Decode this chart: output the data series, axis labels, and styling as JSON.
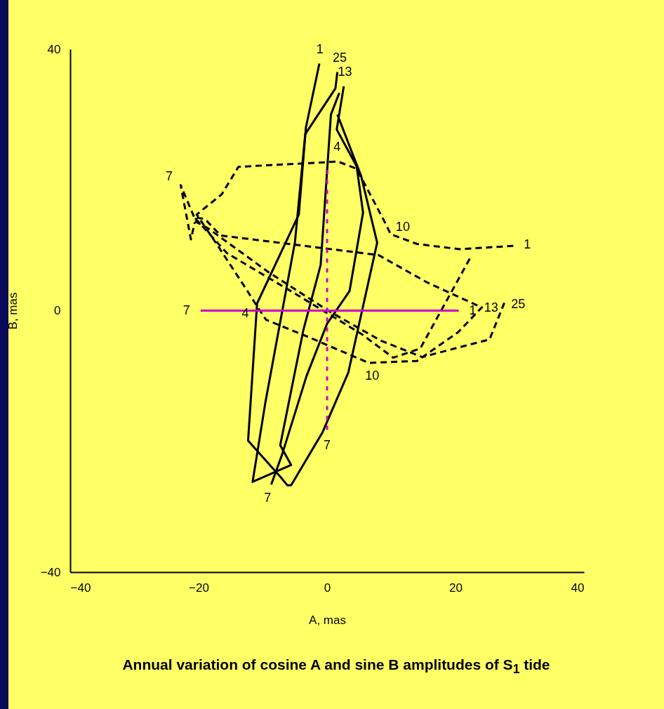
{
  "chart_data": {
    "type": "line",
    "title": "Annual variation of cosine A and sine B amplitudes of S$_{1}$ tide",
    "xlabel": "A, mas",
    "ylabel": "B, mas",
    "xlim": [
      -40,
      40
    ],
    "ylim": [
      -40,
      40
    ],
    "xticks": [
      -40,
      -20,
      0,
      20,
      40
    ],
    "yticks": [
      -40,
      0,
      40
    ],
    "grid": false,
    "marker": "none",
    "series": [
      {
        "color": "#000000",
        "line_style": "solid",
        "x": [
          -1.2,
          -3.3,
          -4.4,
          -10.9,
          -12.3,
          -7.2,
          -6.2,
          -5.6,
          -0.7,
          3.3,
          7.8,
          5.3,
          1.6
        ],
        "values": [
          37.8,
          28,
          14.7,
          1.1,
          -19.9,
          -25.5,
          -26.7,
          -26.7,
          -18.6,
          -9.5,
          10.4,
          20.6,
          30
        ]
      },
      {
        "color": "#000000",
        "line_style": "solid",
        "x": [
          1.6,
          1.3,
          -3.4,
          -5.0,
          -9.6,
          -11.6,
          -5.6,
          -7.3,
          -3.7,
          -1.0,
          0.6,
          1.9
        ],
        "values": [
          36.5,
          34,
          27,
          10.5,
          -14,
          -26.2,
          -23.6,
          -20.6,
          -3,
          7,
          30,
          33.3
        ]
      },
      {
        "color": "#000000",
        "line_style": "solid",
        "x": [
          2.6,
          1.5,
          4.6,
          5.6,
          3.5,
          0,
          -3.2,
          -7,
          -8.7
        ],
        "values": [
          34.3,
          27.7,
          22.1,
          15,
          3,
          -2,
          -10,
          -22,
          -26.6
        ]
      },
      {
        "color": "#000000",
        "line_style": "dashed",
        "x": [
          29,
          20.6,
          14,
          9.9,
          8.9,
          4.6,
          1.7,
          -13.8,
          -16.4,
          -20.3,
          -17,
          -12.6,
          -10.8,
          -9.5,
          -3,
          6.5,
          14,
          20.4,
          24.2
        ],
        "values": [
          9.9,
          9.4,
          10.2,
          11.7,
          13.7,
          21.7,
          22.8,
          22,
          17.8,
          14.7,
          9.9,
          3.3,
          0.5,
          -1.4,
          -4,
          -8,
          -7.7,
          -3.3,
          0.6
        ]
      },
      {
        "color": "#000000",
        "line_style": "dashed",
        "x": [
          23.4,
          15.6,
          8,
          -16.6,
          -19,
          -20.7,
          -15.6,
          -4.3,
          5.4,
          10.3,
          14.5,
          22.3
        ],
        "values": [
          0.8,
          4.3,
          8.5,
          11.5,
          14,
          14.3,
          8.8,
          2.2,
          -3.6,
          -7.2,
          -5.8,
          8.1
        ]
      },
      {
        "color": "#000000",
        "line_style": "dashed",
        "x": [
          27.6,
          25.3,
          14.8,
          8.4,
          0.5,
          -9,
          -18.4,
          -20.4,
          -22.8,
          -21.2,
          -20.6
        ],
        "values": [
          1.2,
          -4.4,
          -7.1,
          -4.6,
          -0.2,
          5.8,
          12.5,
          13.6,
          19.2,
          10.9,
          13.5
        ]
      },
      {
        "color": "#cc00cc",
        "line_style": "solid",
        "x": [
          -19.7,
          20.5
        ],
        "values": [
          0,
          0
        ]
      },
      {
        "color": "#cc00cc",
        "line_style": "dotted",
        "x": [
          0,
          0
        ],
        "values": [
          21.5,
          -18.5
        ]
      }
    ],
    "annotations": [
      {
        "text": "1",
        "x": -1.2,
        "y": 37.8
      },
      {
        "text": "25",
        "x": 1.6,
        "y": 36.5
      },
      {
        "text": "13",
        "x": 2.6,
        "y": 34.3
      },
      {
        "text": "4",
        "x": 1.7,
        "y": 22.8
      },
      {
        "text": "7",
        "x": -22.8,
        "y": 19.2
      },
      {
        "text": "10",
        "x": 9.9,
        "y": 11.7
      },
      {
        "text": "1",
        "x": 29,
        "y": 9.9
      },
      {
        "text": "13",
        "x": 23.4,
        "y": 0.8
      },
      {
        "text": "25",
        "x": 27.6,
        "y": 1.2
      },
      {
        "text": "7",
        "x": -19.7,
        "y": 0
      },
      {
        "text": "4",
        "x": -10.8,
        "y": 0.5
      },
      {
        "text": "1",
        "x": 20.5,
        "y": 0
      },
      {
        "text": "10",
        "x": 6.5,
        "y": -8
      },
      {
        "text": "7",
        "x": 0,
        "y": -18.5
      },
      {
        "text": "7",
        "x": -8.7,
        "y": -26.6
      }
    ]
  }
}
